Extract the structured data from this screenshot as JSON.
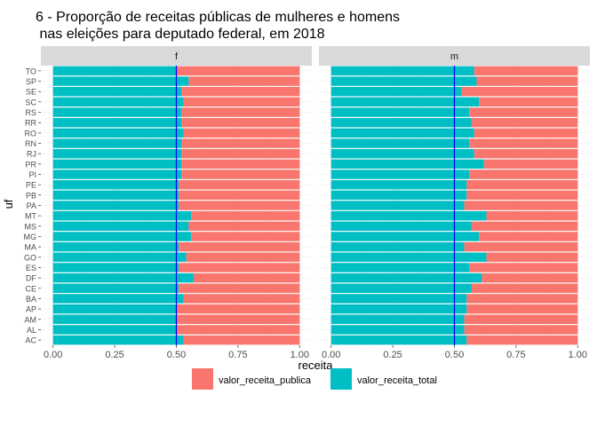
{
  "chart_data": {
    "type": "bar",
    "orientation": "horizontal",
    "stacked": true,
    "title_line1": "6  - Proporção de receitas públicas de mulheres e homens",
    "title_line2": " nas eleições para deputado federal, em 2018",
    "xlabel": "receita",
    "ylabel": "uf",
    "xlim": [
      0,
      1
    ],
    "x_ticks": [
      "0.00",
      "0.25",
      "0.50",
      "0.75",
      "1.00"
    ],
    "reference_line": 0.5,
    "reference_line_color": "#0000FF",
    "grid": true,
    "legend_position": "bottom",
    "categories": [
      "TO",
      "SP",
      "SE",
      "SC",
      "RS",
      "RR",
      "RO",
      "RN",
      "RJ",
      "PR",
      "PI",
      "PE",
      "PB",
      "PA",
      "MT",
      "MS",
      "MG",
      "MA",
      "GO",
      "ES",
      "DF",
      "CE",
      "BA",
      "AP",
      "AM",
      "AL",
      "AC"
    ],
    "series_colors": {
      "valor_receita_publica": "#F8766D",
      "valor_receita_total": "#00BFC4"
    },
    "legend": [
      {
        "label": "valor_receita_publica",
        "color": "#F8766D"
      },
      {
        "label": "valor_receita_total",
        "color": "#00BFC4"
      }
    ],
    "panels": [
      {
        "label": "f",
        "valor_receita_total": [
          0.5,
          0.55,
          0.52,
          0.53,
          0.52,
          0.52,
          0.53,
          0.52,
          0.52,
          0.52,
          0.52,
          0.51,
          0.51,
          0.51,
          0.56,
          0.55,
          0.56,
          0.51,
          0.54,
          0.51,
          0.57,
          0.51,
          0.53,
          0.5,
          0.5,
          0.5,
          0.53
        ]
      },
      {
        "label": "m",
        "valor_receita_total": [
          0.58,
          0.59,
          0.53,
          0.6,
          0.56,
          0.57,
          0.58,
          0.56,
          0.58,
          0.62,
          0.56,
          0.55,
          0.55,
          0.54,
          0.63,
          0.57,
          0.6,
          0.54,
          0.63,
          0.56,
          0.61,
          0.57,
          0.55,
          0.55,
          0.54,
          0.54,
          0.55
        ]
      }
    ]
  }
}
